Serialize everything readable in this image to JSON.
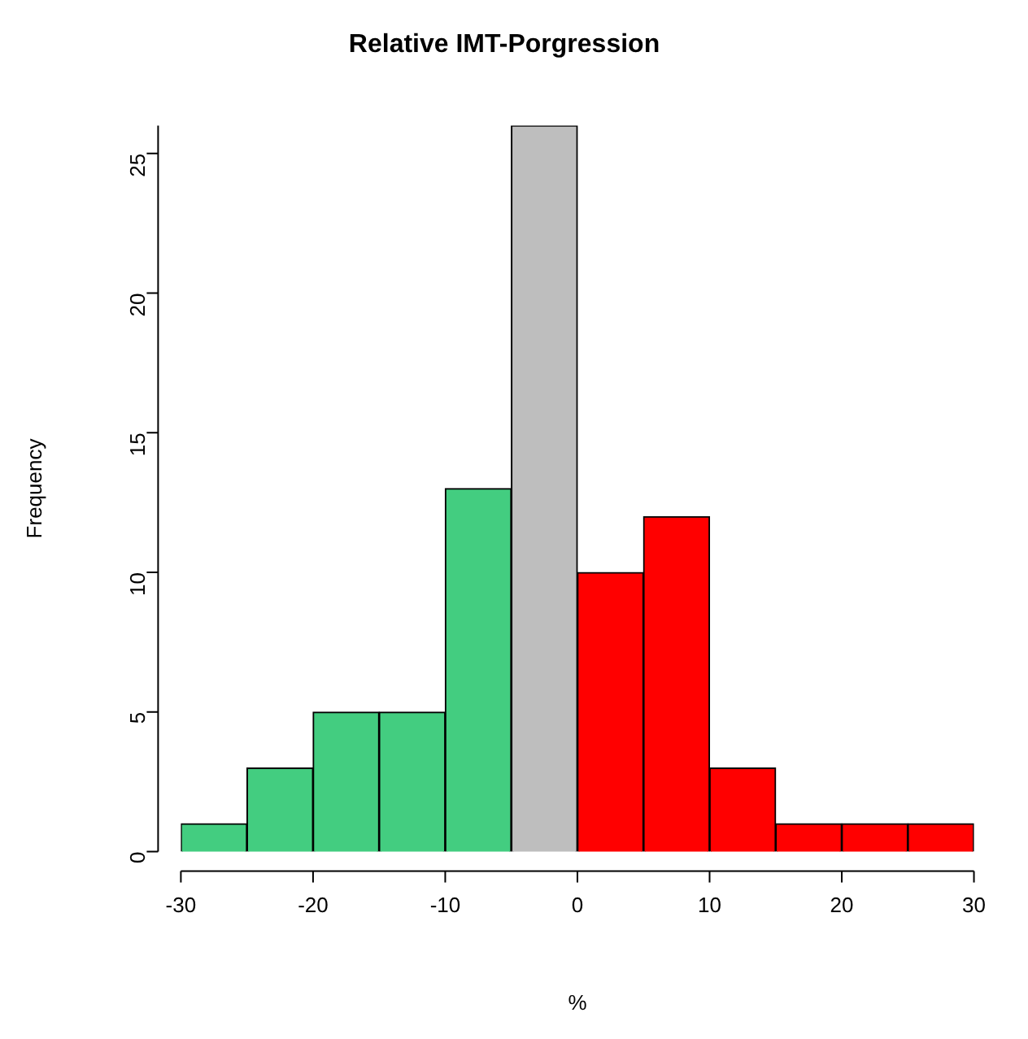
{
  "chart_data": {
    "type": "histogram",
    "title": "Relative IMT-Porgression",
    "xlabel": "%",
    "ylabel": "Frequency",
    "bins": [
      -30,
      -25,
      -20,
      -15,
      -10,
      -5,
      0,
      5,
      10,
      15,
      20,
      25,
      30
    ],
    "values": [
      1,
      3,
      5,
      5,
      13,
      26,
      10,
      12,
      3,
      1,
      1,
      1
    ],
    "colors": [
      "#43cd80",
      "#43cd80",
      "#43cd80",
      "#43cd80",
      "#43cd80",
      "#bebebe",
      "#ff0000",
      "#ff0000",
      "#ff0000",
      "#ff0000",
      "#ff0000",
      "#ff0000"
    ],
    "xlim": [
      -30,
      30
    ],
    "xticks": [
      -30,
      -20,
      -10,
      0,
      10,
      20,
      30
    ],
    "ylim": [
      0,
      26
    ],
    "yticks": [
      0,
      5,
      10,
      15,
      20,
      25
    ],
    "grid": false,
    "legend": false
  }
}
